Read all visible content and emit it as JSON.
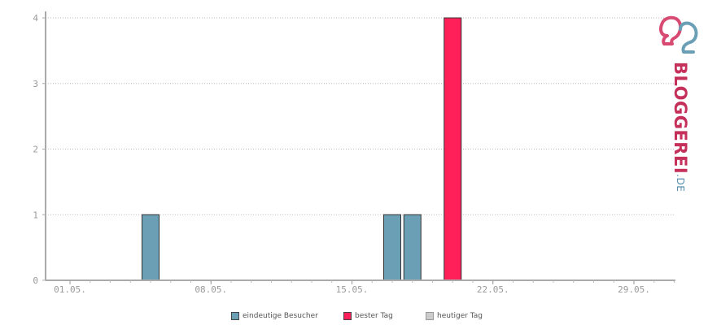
{
  "chart_data": {
    "type": "bar",
    "x_labels": [
      "01.05.",
      "08.05.",
      "15.05.",
      "22.05.",
      "29.05."
    ],
    "x_label_days": [
      1,
      8,
      15,
      22,
      29
    ],
    "days": [
      1,
      2,
      3,
      4,
      5,
      6,
      7,
      8,
      9,
      10,
      11,
      12,
      13,
      14,
      15,
      16,
      17,
      18,
      19,
      20,
      21,
      22,
      23,
      24,
      25,
      26,
      27,
      28,
      29,
      30,
      31
    ],
    "series": [
      {
        "name": "eindeutige Besucher",
        "color": "#6a9fb5",
        "points": [
          {
            "day": 5,
            "value": 1
          },
          {
            "day": 17,
            "value": 1
          },
          {
            "day": 18,
            "value": 1
          }
        ]
      },
      {
        "name": "bester Tag",
        "color": "#ff2059",
        "points": [
          {
            "day": 20,
            "value": 4
          }
        ]
      },
      {
        "name": "heutiger Tag",
        "color": "#cccccc",
        "points": []
      }
    ],
    "y_ticks": [
      0,
      1,
      2,
      3,
      4
    ],
    "ylim": [
      0,
      4
    ],
    "grid": true,
    "legend_position": "bottom-center"
  },
  "legend": {
    "items": [
      {
        "label": "eindeutige Besucher",
        "color": "#6a9fb5"
      },
      {
        "label": "bester Tag",
        "color": "#ff2059"
      },
      {
        "label": "heutiger Tag",
        "color": "#cccccc"
      }
    ]
  },
  "logo": {
    "text_main": "BLOGGEREI",
    "text_suffix": ".DE",
    "color_main": "#c4305a",
    "color_suffix": "#5a8fb0"
  }
}
